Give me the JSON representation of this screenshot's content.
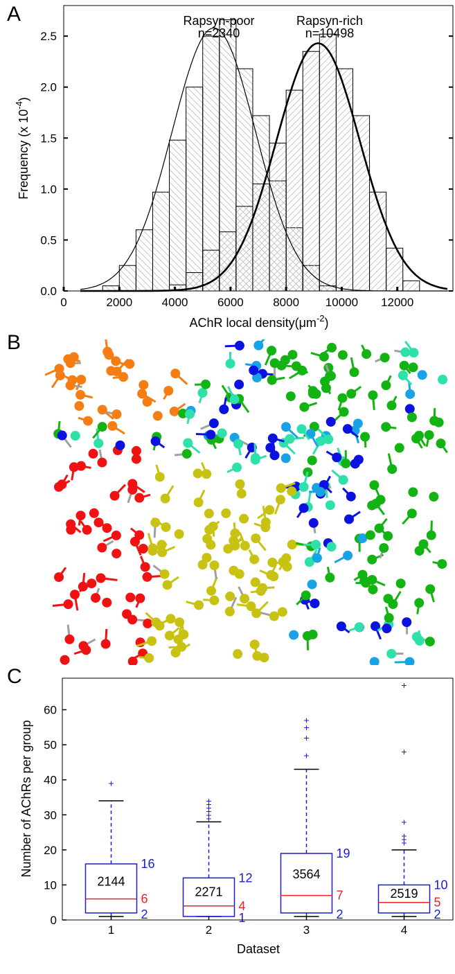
{
  "panels": {
    "a": {
      "letter": "A",
      "chart_data": {
        "type": "bar",
        "xlabel": "AChR local density(μm",
        "xlabel_sup": "-2",
        "xlabel_close": ")",
        "ylabel": "Frequency (x 10",
        "ylabel_sup": "-4",
        "ylabel_close": ")",
        "xlim": [
          0,
          14000
        ],
        "ylim": [
          0,
          2.8
        ],
        "xticks": [
          "0",
          "2000",
          "4000",
          "6000",
          "8000",
          "10000",
          "12000"
        ],
        "xtick_values": [
          0,
          2000,
          4000,
          6000,
          8000,
          10000,
          12000
        ],
        "yticks": [
          "0.0",
          "0.5",
          "1.0",
          "1.5",
          "2.0",
          "2.5"
        ],
        "ytick_values": [
          0,
          0.5,
          1.0,
          1.5,
          2.0,
          2.5
        ],
        "bin_width": 600,
        "series": [
          {
            "name": "Rapsyn-poor",
            "count_label": "n=2340",
            "hatch": "backslash",
            "bin_starts": [
              1400,
              2000,
              2600,
              3200,
              3800,
              4400,
              5000,
              5600,
              6200,
              6800,
              7400,
              8000,
              8600,
              9200
            ],
            "values": [
              0.05,
              0.25,
              0.6,
              0.97,
              1.48,
              2.0,
              2.5,
              2.66,
              2.18,
              1.72,
              1.08,
              0.62,
              0.25,
              0.05
            ],
            "fit_mean": 5400,
            "fit_sd": 1500,
            "fit_peak": 2.58
          },
          {
            "name": "Rapsyn-rich",
            "count_label": "n=10498",
            "hatch": "slash",
            "bin_starts": [
              3800,
              4400,
              5000,
              5600,
              6200,
              6800,
              7400,
              8000,
              8600,
              9200,
              9800,
              10400,
              11000,
              11600,
              12200
            ],
            "values": [
              0.06,
              0.18,
              0.4,
              0.58,
              0.83,
              1.05,
              1.45,
              1.97,
              2.35,
              2.52,
              2.18,
              1.72,
              0.97,
              0.42,
              0.1
            ],
            "fit_mean": 9150,
            "fit_sd": 1500,
            "fit_peak": 2.43
          }
        ]
      }
    },
    "b": {
      "letter": "B",
      "colors": [
        "#0b12e0",
        "#19a3e6",
        "#2ee0aa",
        "#12b312",
        "#c8c212",
        "#f57d13",
        "#f01212",
        "#66ee22"
      ]
    },
    "c": {
      "letter": "C",
      "chart_data": {
        "type": "box",
        "xlabel": "Dataset",
        "ylabel": "Number of AChRs per group",
        "categories": [
          "1",
          "2",
          "3",
          "4"
        ],
        "ylim": [
          0,
          69
        ],
        "yticks": [
          "0",
          "10",
          "20",
          "30",
          "40",
          "50",
          "60"
        ],
        "ytick_values": [
          0,
          10,
          20,
          30,
          40,
          50,
          60
        ],
        "boxes": [
          {
            "q1": 2,
            "median": 6,
            "q3": 16,
            "whisker_low": 1,
            "whisker_high": 34,
            "outliers": [
              39
            ],
            "n": "2144",
            "q1_label": "2",
            "median_label": "6",
            "q3_label": "16"
          },
          {
            "q1": 1,
            "median": 4,
            "q3": 12,
            "whisker_low": 1,
            "whisker_high": 28,
            "outliers": [
              29,
              30,
              31,
              32,
              33,
              34
            ],
            "n": "2271",
            "q1_label": "1",
            "median_label": "4",
            "q3_label": "12"
          },
          {
            "q1": 2,
            "median": 7,
            "q3": 19,
            "whisker_low": 1,
            "whisker_high": 43,
            "outliers": [
              47,
              52,
              55,
              57
            ],
            "n": "3564",
            "q1_label": "2",
            "median_label": "7",
            "q3_label": "19"
          },
          {
            "q1": 2,
            "median": 5,
            "q3": 10,
            "whisker_low": 1,
            "whisker_high": 20,
            "outliers": [
              22,
              23,
              24,
              28,
              48,
              67
            ],
            "n": "2519",
            "q1_label": "2",
            "median_label": "5",
            "q3_label": "10"
          }
        ],
        "box_color": "#1a1ad8",
        "median_color": "#ee2020",
        "count_color": "#000000"
      }
    }
  }
}
